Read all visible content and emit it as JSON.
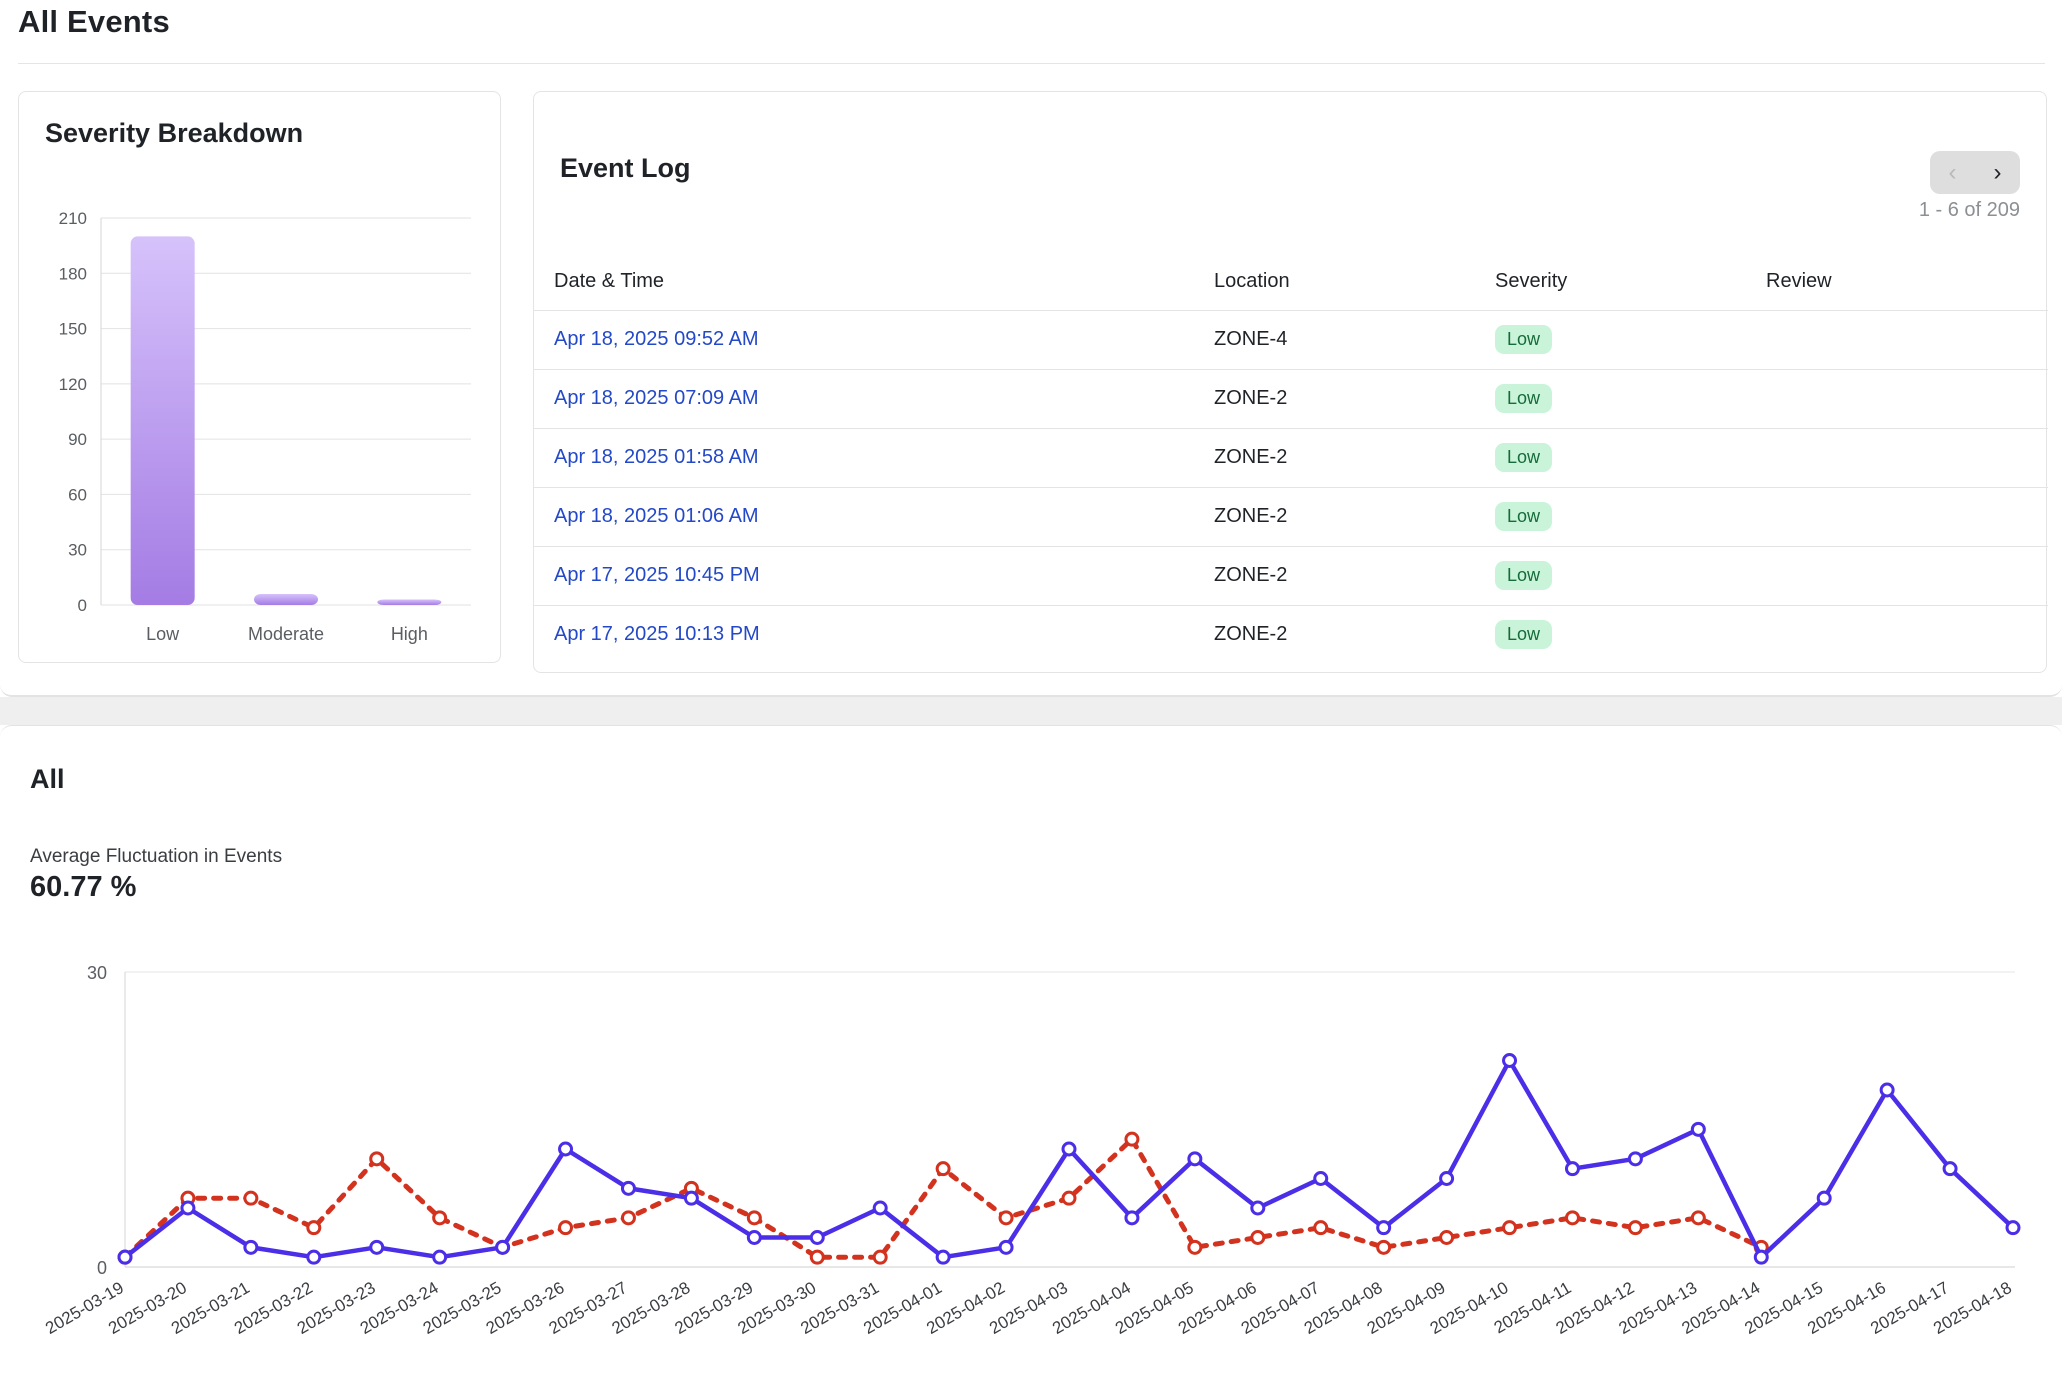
{
  "page": {
    "title": "All Events"
  },
  "severity_breakdown": {
    "title": "Severity Breakdown",
    "bar_color_top": "#d6c2fb",
    "bar_color_bottom": "#a47ce4",
    "chart_data": {
      "type": "bar",
      "categories": [
        "Low",
        "Moderate",
        "High"
      ],
      "values": [
        200,
        6,
        3
      ],
      "ylim": [
        0,
        210
      ],
      "yticks": [
        0,
        30,
        60,
        90,
        120,
        150,
        180,
        210
      ]
    }
  },
  "event_log": {
    "title": "Event Log",
    "pager": {
      "range_text": "1 - 6 of 209",
      "prev_icon": "chevron-left-icon",
      "next_icon": "chevron-right-icon"
    },
    "columns": [
      "Date & Time",
      "Location",
      "Severity",
      "Review"
    ],
    "rows": [
      {
        "date": "Apr 18, 2025 09:52 AM",
        "location": "ZONE-4",
        "severity": "Low",
        "review": ""
      },
      {
        "date": "Apr 18, 2025 07:09 AM",
        "location": "ZONE-2",
        "severity": "Low",
        "review": ""
      },
      {
        "date": "Apr 18, 2025 01:58 AM",
        "location": "ZONE-2",
        "severity": "Low",
        "review": ""
      },
      {
        "date": "Apr 18, 2025 01:06 AM",
        "location": "ZONE-2",
        "severity": "Low",
        "review": ""
      },
      {
        "date": "Apr 17, 2025 10:45 PM",
        "location": "ZONE-2",
        "severity": "Low",
        "review": ""
      },
      {
        "date": "Apr 17, 2025 10:13 PM",
        "location": "ZONE-2",
        "severity": "Low",
        "review": ""
      }
    ],
    "link_color": "#2348c8",
    "badge_bg": "#c9f4d9"
  },
  "fluctuation": {
    "title": "All",
    "stat_label": "Average Fluctuation in Events",
    "stat_value": "60.77 %",
    "chart_data": {
      "type": "line",
      "x": [
        "2025-03-19",
        "2025-03-20",
        "2025-03-21",
        "2025-03-22",
        "2025-03-23",
        "2025-03-24",
        "2025-03-25",
        "2025-03-26",
        "2025-03-27",
        "2025-03-28",
        "2025-03-29",
        "2025-03-30",
        "2025-03-31",
        "2025-04-01",
        "2025-04-02",
        "2025-04-03",
        "2025-04-04",
        "2025-04-05",
        "2025-04-06",
        "2025-04-07",
        "2025-04-08",
        "2025-04-09",
        "2025-04-10",
        "2025-04-11",
        "2025-04-12",
        "2025-04-13",
        "2025-04-14",
        "2025-04-15",
        "2025-04-16",
        "2025-04-17",
        "2025-04-18"
      ],
      "ylim": [
        0,
        30
      ],
      "yticks": [
        0,
        30
      ],
      "series": [
        {
          "style": "solid",
          "color": "#4a2ee8",
          "values": [
            1,
            6,
            2,
            1,
            2,
            1,
            2,
            12,
            8,
            7,
            3,
            3,
            6,
            1,
            2,
            12,
            5,
            11,
            6,
            9,
            4,
            9,
            21,
            10,
            11,
            14,
            1,
            7,
            18,
            10,
            4
          ]
        },
        {
          "style": "dashed",
          "color": "#d2321e",
          "values": [
            1,
            7,
            7,
            4,
            11,
            5,
            2,
            4,
            5,
            8,
            5,
            1,
            1,
            10,
            5,
            7,
            13,
            2,
            3,
            4,
            2,
            3,
            4,
            5,
            4,
            5,
            2,
            null,
            null,
            null,
            null
          ]
        }
      ]
    }
  }
}
